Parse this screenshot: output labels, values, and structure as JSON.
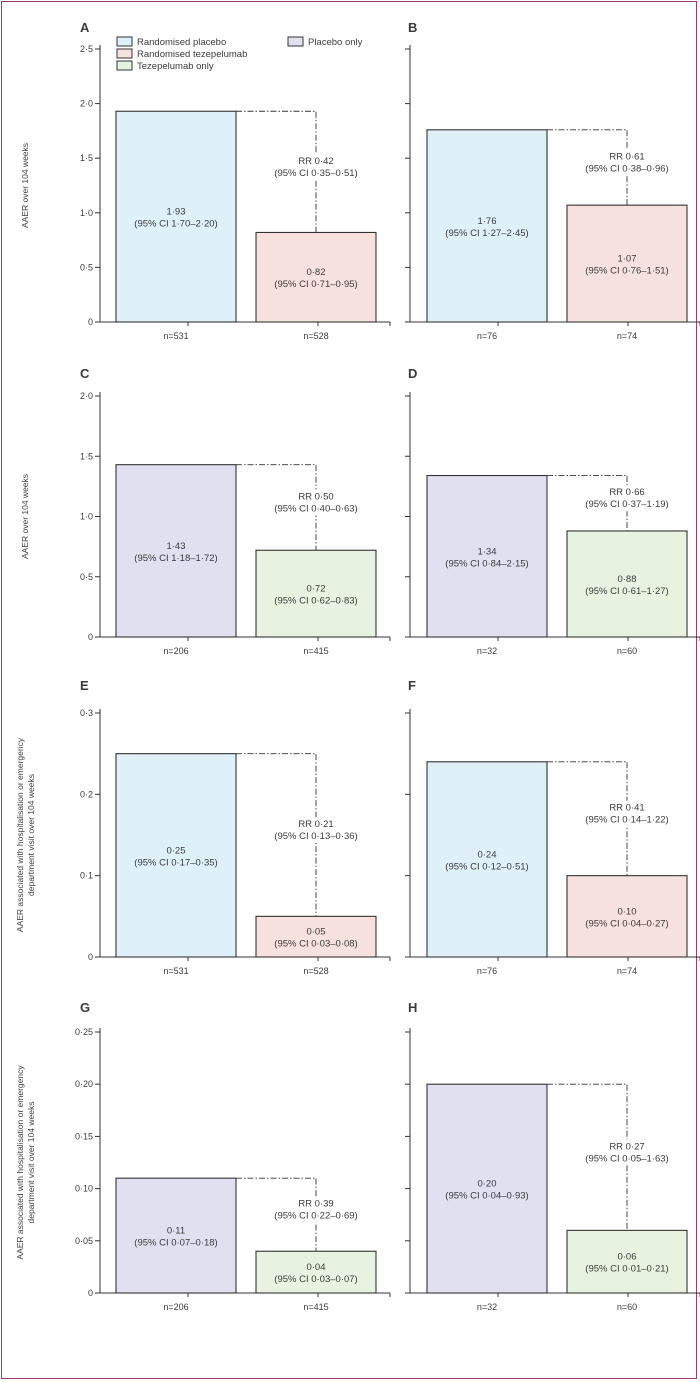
{
  "legend": {
    "items": [
      {
        "label": "Randomised placebo",
        "color": "#dff1f8"
      },
      {
        "label": "Placebo only",
        "color": "#e1e0f1"
      },
      {
        "label": "Randomised tezepelumab",
        "color": "#f7e1de"
      },
      {
        "label": "Tezepelumab only",
        "color": "#e7f3e0"
      }
    ]
  },
  "colors": {
    "randomised_placebo": "#dff1f8",
    "placebo_only": "#e1e0f1",
    "randomised_tezepelumab": "#f7e1de",
    "tezepelumab_only": "#e7f3e0",
    "outline": "#333333",
    "frame": "#9b3a78"
  },
  "chart_data": [
    {
      "type": "bar",
      "panel": "A",
      "ylabel": "AAER over 104 weeks",
      "yticks": [
        "0",
        "0·5",
        "1·0",
        "1·5",
        "2·0",
        "2·5"
      ],
      "ylim": [
        0,
        2.5
      ],
      "categories": [
        "n=531",
        "n=528"
      ],
      "values": [
        1.93,
        0.82
      ],
      "colors": [
        "#dff1f8",
        "#f7e1de"
      ],
      "value_labels": [
        [
          "1·93",
          "(95% CI 1·70–2·20)"
        ],
        [
          "0·82",
          "(95% CI 0·71–0·95)"
        ]
      ],
      "rr_label": [
        "RR 0·42",
        "(95% CI 0·35–0·51)"
      ]
    },
    {
      "type": "bar",
      "panel": "B",
      "ylabel": "",
      "yticks": [],
      "ylim": [
        0,
        2.5
      ],
      "categories": [
        "n=76",
        "n=74"
      ],
      "values": [
        1.76,
        1.07
      ],
      "colors": [
        "#dff1f8",
        "#f7e1de"
      ],
      "value_labels": [
        [
          "1·76",
          "(95% CI 1·27–2·45)"
        ],
        [
          "1·07",
          "(95% CI 0·76–1·51)"
        ]
      ],
      "rr_label": [
        "RR 0·61",
        "(95% CI 0·38–0·96)"
      ]
    },
    {
      "type": "bar",
      "panel": "C",
      "ylabel": "AAER over 104 weeks",
      "yticks": [
        "0",
        "0·5",
        "1·0",
        "1·5",
        "2·0"
      ],
      "ylim": [
        0,
        2.0
      ],
      "categories": [
        "n=206",
        "n=415"
      ],
      "values": [
        1.43,
        0.72
      ],
      "colors": [
        "#e1e0f1",
        "#e7f3e0"
      ],
      "value_labels": [
        [
          "1·43",
          "(95% CI 1·18–1·72)"
        ],
        [
          "0·72",
          "(95% CI 0·62–0·83)"
        ]
      ],
      "rr_label": [
        "RR 0·50",
        "(95% CI 0·40–0·63)"
      ]
    },
    {
      "type": "bar",
      "panel": "D",
      "ylabel": "",
      "yticks": [],
      "ylim": [
        0,
        2.0
      ],
      "categories": [
        "n=32",
        "n=60"
      ],
      "values": [
        1.34,
        0.88
      ],
      "colors": [
        "#e1e0f1",
        "#e7f3e0"
      ],
      "value_labels": [
        [
          "1·34",
          "(95% CI 0·84–2·15)"
        ],
        [
          "0·88",
          "(95% CI 0·61–1·27)"
        ]
      ],
      "rr_label": [
        "RR 0·66",
        "(95% CI 0·37–1·19)"
      ]
    },
    {
      "type": "bar",
      "panel": "E",
      "ylabel": "AAER associated with hospitalisation or emergency department visit over 104 weeks",
      "yticks": [
        "0",
        "0·1",
        "0·2",
        "0·3"
      ],
      "ylim": [
        0,
        0.3
      ],
      "categories": [
        "n=531",
        "n=528"
      ],
      "values": [
        0.25,
        0.05
      ],
      "colors": [
        "#dff1f8",
        "#f7e1de"
      ],
      "value_labels": [
        [
          "0·25",
          "(95% CI 0·17–0·35)"
        ],
        [
          "0·05",
          "(95% CI 0·03–0·08)"
        ]
      ],
      "rr_label": [
        "RR 0·21",
        "(95% CI 0·13–0·36)"
      ]
    },
    {
      "type": "bar",
      "panel": "F",
      "ylabel": "",
      "yticks": [],
      "ylim": [
        0,
        0.3
      ],
      "categories": [
        "n=76",
        "n=74"
      ],
      "values": [
        0.24,
        0.1
      ],
      "colors": [
        "#dff1f8",
        "#f7e1de"
      ],
      "value_labels": [
        [
          "0·24",
          "(95% CI 0·12–0·51)"
        ],
        [
          "0·10",
          "(95% CI 0·04–0·27)"
        ]
      ],
      "rr_label": [
        "RR 0·41",
        "(95% CI 0·14–1·22)"
      ]
    },
    {
      "type": "bar",
      "panel": "G",
      "ylabel": "AAER associated with hospitalisation or emergency department visit over 104 weeks",
      "yticks": [
        "0",
        "0·05",
        "0·10",
        "0·15",
        "0·20",
        "0·25"
      ],
      "ylim": [
        0,
        0.25
      ],
      "categories": [
        "n=206",
        "n=415"
      ],
      "values": [
        0.11,
        0.04
      ],
      "colors": [
        "#e1e0f1",
        "#e7f3e0"
      ],
      "value_labels": [
        [
          "0·11",
          "(95% CI 0·07–0·18)"
        ],
        [
          "0·04",
          "(95% CI 0·03–0·07)"
        ]
      ],
      "rr_label": [
        "RR 0·39",
        "(95% CI 0·22–0·69)"
      ]
    },
    {
      "type": "bar",
      "panel": "H",
      "ylabel": "",
      "yticks": [],
      "ylim": [
        0,
        0.25
      ],
      "categories": [
        "n=32",
        "n=60"
      ],
      "values": [
        0.2,
        0.06
      ],
      "colors": [
        "#e1e0f1",
        "#e7f3e0"
      ],
      "value_labels": [
        [
          "0·20",
          "(95% CI 0·04–0·93)"
        ],
        [
          "0·06",
          "(95% CI 0·01–0·21)"
        ]
      ],
      "rr_label": [
        "RR 0·27",
        "(95% CI 0·05–1·63)"
      ]
    }
  ]
}
